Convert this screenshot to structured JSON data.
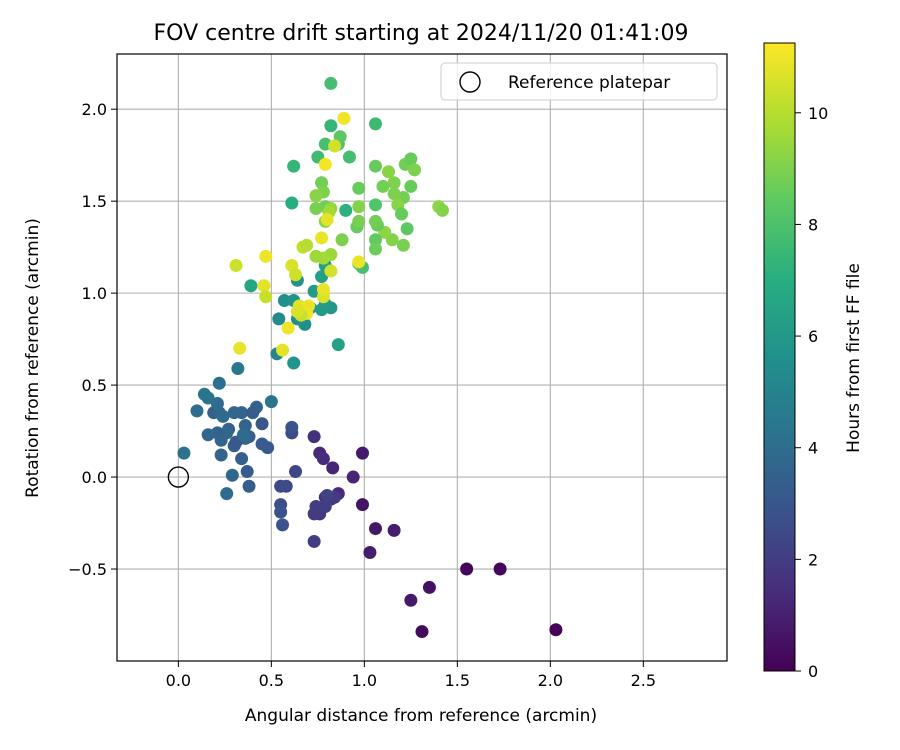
{
  "chart_data": {
    "type": "scatter",
    "title": "FOV centre drift starting at 2024/11/20 01:41:09",
    "xlabel": "Angular distance from reference (arcmin)",
    "ylabel": "Rotation from reference (arcmin)",
    "xlim": [
      -0.33,
      2.95
    ],
    "ylim": [
      -1.0,
      2.3
    ],
    "xticks": [
      0.0,
      0.5,
      1.0,
      1.5,
      2.0,
      2.5
    ],
    "xtick_labels": [
      "0.0",
      "0.5",
      "1.0",
      "1.5",
      "2.0",
      "2.5"
    ],
    "yticks": [
      -0.5,
      0.0,
      0.5,
      1.0,
      1.5,
      2.0
    ],
    "ytick_labels": [
      "−0.5",
      "0.0",
      "0.5",
      "1.0",
      "1.5",
      "2.0"
    ],
    "grid": true,
    "legend": {
      "position": "top-right",
      "label": "Reference platepar",
      "marker": "open-circle"
    },
    "reference_point": {
      "x": 0.0,
      "y": 0.0
    },
    "colorbar": {
      "label": "Hours from first FF file",
      "colormap": "viridis",
      "range": [
        0,
        11.25
      ],
      "ticks": [
        0,
        2,
        4,
        6,
        8,
        10
      ],
      "tick_labels": [
        "0",
        "2",
        "4",
        "6",
        "8",
        "10"
      ]
    },
    "points": [
      [
        2.03,
        -0.83,
        0.1
      ],
      [
        1.31,
        -0.84,
        0.3
      ],
      [
        1.55,
        -0.5,
        0.2
      ],
      [
        1.73,
        -0.5,
        0.2
      ],
      [
        1.35,
        -0.6,
        0.5
      ],
      [
        1.25,
        -0.67,
        0.8
      ],
      [
        1.03,
        -0.41,
        0.9
      ],
      [
        1.06,
        -0.28,
        0.7
      ],
      [
        1.16,
        -0.29,
        0.9
      ],
      [
        0.99,
        -0.15,
        0.6
      ],
      [
        0.99,
        0.13,
        0.8
      ],
      [
        0.94,
        0.0,
        1.2
      ],
      [
        0.86,
        -0.09,
        1.3
      ],
      [
        0.79,
        -0.11,
        1.5
      ],
      [
        0.82,
        -0.12,
        1.7
      ],
      [
        0.83,
        0.05,
        1.2
      ],
      [
        0.76,
        0.13,
        1.3
      ],
      [
        0.78,
        0.1,
        1.4
      ],
      [
        0.73,
        0.22,
        1.6
      ],
      [
        0.76,
        -0.2,
        1.8
      ],
      [
        0.73,
        -0.2,
        1.9
      ],
      [
        0.74,
        -0.16,
        2.0
      ],
      [
        0.79,
        -0.16,
        2.1
      ],
      [
        0.73,
        -0.35,
        2.0
      ],
      [
        0.84,
        -0.11,
        1.9
      ],
      [
        0.8,
        -0.1,
        2.2
      ],
      [
        0.63,
        0.03,
        2.4
      ],
      [
        0.55,
        -0.05,
        2.5
      ],
      [
        0.58,
        -0.05,
        2.6
      ],
      [
        0.55,
        -0.15,
        2.7
      ],
      [
        0.56,
        -0.26,
        2.8
      ],
      [
        0.55,
        -0.19,
        2.9
      ],
      [
        0.61,
        0.24,
        2.6
      ],
      [
        0.61,
        0.27,
        2.9
      ],
      [
        0.45,
        0.29,
        3.0
      ],
      [
        0.48,
        0.16,
        3.1
      ],
      [
        0.45,
        0.18,
        3.2
      ],
      [
        0.38,
        0.22,
        3.3
      ],
      [
        0.37,
        0.03,
        3.2
      ],
      [
        0.38,
        -0.05,
        3.3
      ],
      [
        0.34,
        0.1,
        3.4
      ],
      [
        0.3,
        0.17,
        3.3
      ],
      [
        0.36,
        0.28,
        3.5
      ],
      [
        0.36,
        0.21,
        3.7
      ],
      [
        0.34,
        0.35,
        3.6
      ],
      [
        0.31,
        0.19,
        3.1
      ],
      [
        0.27,
        0.26,
        3.4
      ],
      [
        0.26,
        0.24,
        3.8
      ],
      [
        0.23,
        0.12,
        3.6
      ],
      [
        0.29,
        0.01,
        3.8
      ],
      [
        0.26,
        -0.09,
        3.9
      ],
      [
        0.23,
        0.2,
        3.7
      ],
      [
        0.21,
        0.24,
        3.5
      ],
      [
        0.19,
        0.35,
        3.4
      ],
      [
        0.22,
        0.35,
        3.6
      ],
      [
        0.24,
        0.33,
        3.9
      ],
      [
        0.3,
        0.35,
        3.7
      ],
      [
        0.42,
        0.38,
        3.5
      ],
      [
        0.4,
        0.35,
        3.3
      ],
      [
        0.35,
        0.23,
        3.9
      ],
      [
        0.16,
        0.23,
        3.8
      ],
      [
        0.21,
        0.4,
        4.0
      ],
      [
        0.1,
        0.36,
        4.0
      ],
      [
        0.16,
        0.43,
        4.2
      ],
      [
        0.22,
        0.51,
        4.1
      ],
      [
        0.14,
        0.45,
        4.3
      ],
      [
        0.03,
        0.13,
        4.2
      ],
      [
        0.5,
        0.41,
        4.3
      ],
      [
        0.32,
        0.59,
        4.5
      ],
      [
        0.53,
        0.67,
        5.1
      ],
      [
        0.62,
        0.62,
        5.8
      ],
      [
        0.54,
        0.86,
        5.3
      ],
      [
        0.57,
        0.96,
        5.6
      ],
      [
        0.62,
        0.96,
        5.7
      ],
      [
        0.64,
        0.86,
        5.5
      ],
      [
        0.64,
        1.07,
        5.7
      ],
      [
        0.67,
        0.85,
        5.4
      ],
      [
        0.68,
        0.83,
        5.6
      ],
      [
        0.71,
        0.92,
        5.9
      ],
      [
        0.77,
        0.91,
        6.0
      ],
      [
        0.82,
        0.92,
        5.9
      ],
      [
        0.79,
        0.94,
        6.1
      ],
      [
        0.77,
        1.09,
        6.3
      ],
      [
        0.86,
        0.72,
        6.4
      ],
      [
        0.39,
        1.04,
        6.6
      ],
      [
        0.79,
        1.15,
        6.3
      ],
      [
        0.73,
        1.01,
        6.0
      ],
      [
        0.61,
        1.49,
        7.0
      ],
      [
        0.62,
        1.69,
        7.4
      ],
      [
        0.75,
        1.74,
        7.7
      ],
      [
        0.79,
        1.81,
        7.9
      ],
      [
        0.82,
        1.91,
        7.4
      ],
      [
        0.82,
        2.14,
        7.8
      ],
      [
        0.86,
        1.81,
        8.1
      ],
      [
        0.87,
        1.85,
        8.4
      ],
      [
        0.92,
        1.74,
        7.8
      ],
      [
        1.06,
        1.92,
        7.6
      ],
      [
        0.9,
        1.45,
        7.2
      ],
      [
        1.06,
        1.48,
        8.1
      ],
      [
        1.06,
        1.69,
        8.6
      ],
      [
        1.1,
        1.58,
        8.8
      ],
      [
        1.16,
        1.6,
        9.0
      ],
      [
        1.13,
        1.66,
        9.2
      ],
      [
        1.22,
        1.7,
        8.8
      ],
      [
        1.25,
        1.73,
        8.6
      ],
      [
        1.27,
        1.67,
        9.0
      ],
      [
        1.25,
        1.58,
        8.6
      ],
      [
        1.21,
        1.52,
        8.8
      ],
      [
        1.16,
        1.54,
        9.0
      ],
      [
        1.18,
        1.48,
        9.2
      ],
      [
        1.2,
        1.43,
        8.6
      ],
      [
        1.23,
        1.35,
        8.4
      ],
      [
        1.21,
        1.26,
        8.9
      ],
      [
        1.15,
        1.29,
        9.1
      ],
      [
        1.11,
        1.33,
        9.3
      ],
      [
        1.07,
        1.37,
        8.6
      ],
      [
        1.06,
        1.39,
        8.8
      ],
      [
        1.06,
        1.29,
        8.5
      ],
      [
        1.06,
        1.24,
        8.7
      ],
      [
        0.97,
        1.16,
        8.3
      ],
      [
        0.99,
        1.14,
        7.8
      ],
      [
        0.96,
        1.36,
        8.6
      ],
      [
        0.97,
        1.39,
        8.9
      ],
      [
        0.97,
        1.47,
        9.1
      ],
      [
        0.97,
        1.57,
        8.6
      ],
      [
        0.77,
        1.6,
        8.8
      ],
      [
        0.78,
        1.55,
        9.0
      ],
      [
        0.74,
        1.53,
        9.2
      ],
      [
        0.79,
        1.47,
        8.7
      ],
      [
        0.74,
        1.46,
        8.9
      ],
      [
        0.82,
        1.46,
        9.4
      ],
      [
        0.81,
        1.44,
        9.7
      ],
      [
        0.82,
        1.21,
        9.5
      ],
      [
        0.78,
        1.19,
        9.7
      ],
      [
        0.74,
        1.2,
        9.6
      ],
      [
        0.79,
        1.39,
        9.2
      ],
      [
        0.88,
        1.29,
        9.0
      ],
      [
        1.4,
        1.47,
        9.3
      ],
      [
        1.42,
        1.45,
        9.1
      ],
      [
        0.67,
        1.25,
        10.2
      ],
      [
        0.69,
        1.26,
        10.0
      ],
      [
        0.61,
        1.15,
        10.6
      ],
      [
        0.63,
        1.1,
        10.4
      ],
      [
        0.77,
        1.3,
        10.9
      ],
      [
        0.84,
        1.8,
        10.5
      ],
      [
        0.89,
        1.95,
        11.0
      ],
      [
        0.79,
        1.7,
        11.1
      ],
      [
        0.8,
        1.4,
        10.8
      ],
      [
        0.97,
        1.17,
        10.9
      ],
      [
        0.82,
        1.12,
        10.5
      ],
      [
        0.47,
        1.2,
        11.0
      ],
      [
        0.31,
        1.15,
        10.4
      ],
      [
        0.46,
        1.04,
        10.8
      ],
      [
        0.47,
        0.98,
        10.3
      ],
      [
        0.33,
        0.7,
        10.9
      ],
      [
        0.56,
        0.69,
        10.8
      ],
      [
        0.59,
        0.81,
        11.0
      ],
      [
        0.65,
        0.93,
        10.7
      ],
      [
        0.7,
        0.93,
        10.9
      ],
      [
        0.69,
        0.89,
        11.0
      ],
      [
        0.78,
        0.98,
        10.6
      ],
      [
        0.78,
        1.02,
        10.9
      ],
      [
        0.66,
        0.88,
        10.3
      ],
      [
        0.64,
        0.9,
        10.6
      ]
    ]
  }
}
